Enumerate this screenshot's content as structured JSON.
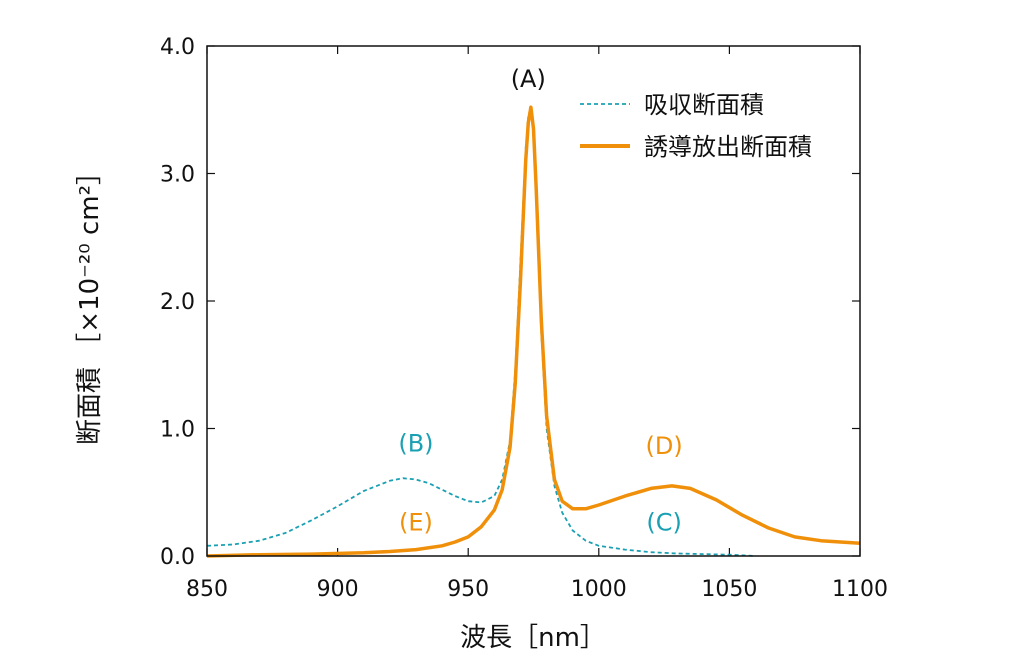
{
  "chart_data": {
    "type": "line",
    "xlabel": "波長［nm］",
    "ylabel": "断面積 ［×10⁻²⁰ cm²］",
    "xlim": [
      850,
      1100
    ],
    "ylim": [
      0,
      4.0
    ],
    "x_ticks": [
      850,
      900,
      950,
      1000,
      1050,
      1100
    ],
    "x_tick_labels": [
      "850",
      "900",
      "950",
      "1000",
      "1050",
      "1100"
    ],
    "y_ticks": [
      0,
      1,
      2,
      3,
      4
    ],
    "y_tick_labels": [
      "0.0",
      "1.0",
      "2.0",
      "3.0",
      "4.0"
    ],
    "legend_position": "top-right",
    "colors": {
      "absorption": "#1aa0b3",
      "emission": "#f0900a",
      "axis": "#111111"
    },
    "series": [
      {
        "name": "吸収断面積",
        "style": "dashed",
        "x": [
          850,
          860,
          870,
          880,
          890,
          900,
          910,
          920,
          925,
          930,
          935,
          940,
          945,
          950,
          955,
          960,
          963,
          966,
          968,
          970,
          972,
          973,
          974,
          975,
          976,
          978,
          980,
          983,
          986,
          990,
          995,
          1000,
          1010,
          1020,
          1030,
          1040,
          1050,
          1060
        ],
        "values": [
          0.08,
          0.09,
          0.12,
          0.18,
          0.28,
          0.39,
          0.51,
          0.59,
          0.61,
          0.6,
          0.57,
          0.52,
          0.47,
          0.43,
          0.42,
          0.47,
          0.6,
          0.9,
          1.45,
          2.3,
          3.2,
          3.45,
          3.52,
          3.3,
          2.8,
          1.75,
          1.0,
          0.55,
          0.34,
          0.2,
          0.12,
          0.08,
          0.05,
          0.03,
          0.02,
          0.015,
          0.01,
          0.0
        ]
      },
      {
        "name": "誘導放出断面積",
        "style": "solid",
        "x": [
          850,
          870,
          890,
          910,
          920,
          930,
          940,
          945,
          950,
          955,
          960,
          963,
          966,
          968,
          970,
          972,
          973,
          974,
          975,
          976,
          978,
          980,
          983,
          986,
          990,
          995,
          1000,
          1010,
          1020,
          1028,
          1035,
          1045,
          1055,
          1065,
          1075,
          1085,
          1100
        ],
        "values": [
          0.0,
          0.01,
          0.015,
          0.025,
          0.035,
          0.05,
          0.08,
          0.11,
          0.15,
          0.23,
          0.36,
          0.52,
          0.85,
          1.35,
          2.15,
          3.1,
          3.4,
          3.52,
          3.35,
          2.9,
          1.85,
          1.1,
          0.6,
          0.43,
          0.37,
          0.37,
          0.4,
          0.47,
          0.53,
          0.55,
          0.53,
          0.44,
          0.32,
          0.22,
          0.15,
          0.12,
          0.1
        ]
      }
    ],
    "annotations": [
      {
        "label": "(A)",
        "x": 973,
        "y": 3.68,
        "color": "#111111"
      },
      {
        "label": "(B)",
        "x": 930,
        "y": 0.82,
        "color": "#1aa0b3"
      },
      {
        "label": "(C)",
        "x": 1025,
        "y": 0.2,
        "color": "#1aa0b3"
      },
      {
        "label": "(D)",
        "x": 1025,
        "y": 0.8,
        "color": "#f0900a"
      },
      {
        "label": "(E)",
        "x": 930,
        "y": 0.2,
        "color": "#f0900a"
      }
    ]
  }
}
